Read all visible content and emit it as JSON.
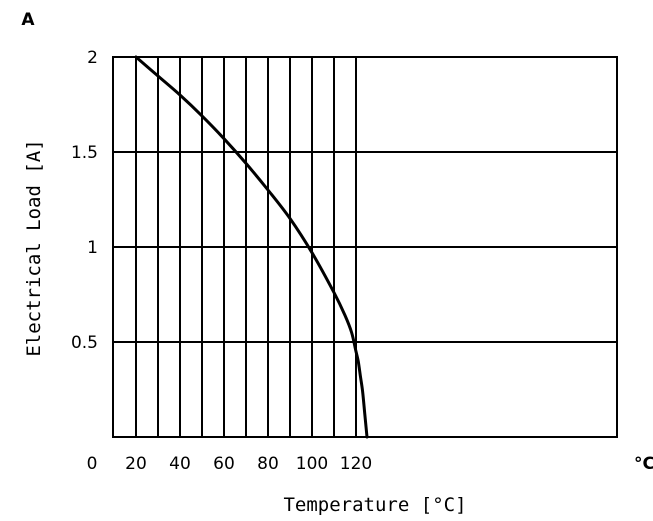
{
  "chart_data": {
    "type": "line",
    "xlabel": "Temperature [°C]",
    "ylabel": "Electrical Load [A]",
    "x_unit": "°C",
    "y_unit": "A",
    "xlim": [
      20,
      130
    ],
    "ylim": [
      0,
      2
    ],
    "x_gridlines": [
      20,
      30,
      40,
      50,
      60,
      70,
      80,
      90,
      100,
      110,
      120
    ],
    "y_gridlines": [
      0.5,
      1,
      1.5,
      2
    ],
    "x_tick_labels": [
      {
        "value": 0,
        "text": "0"
      },
      {
        "value": 20,
        "text": "20"
      },
      {
        "value": 40,
        "text": "40"
      },
      {
        "value": 60,
        "text": "60"
      },
      {
        "value": 80,
        "text": "80"
      },
      {
        "value": 100,
        "text": "100"
      },
      {
        "value": 120,
        "text": "120"
      }
    ],
    "y_tick_labels": [
      {
        "value": 0.5,
        "text": "0.5"
      },
      {
        "value": 1,
        "text": "1"
      },
      {
        "value": 1.5,
        "text": "1.5"
      },
      {
        "value": 2,
        "text": "2"
      }
    ],
    "grid": true,
    "series": [
      {
        "x": [
          20,
          30,
          40,
          50,
          60,
          70,
          80,
          90,
          100,
          110,
          115,
          118,
          120,
          121,
          122,
          123,
          124,
          125
        ],
        "y": [
          2.0,
          1.9,
          1.8,
          1.69,
          1.57,
          1.44,
          1.3,
          1.15,
          0.97,
          0.76,
          0.64,
          0.55,
          0.45,
          0.4,
          0.32,
          0.24,
          0.12,
          0.0
        ],
        "color": "#000000"
      }
    ]
  }
}
